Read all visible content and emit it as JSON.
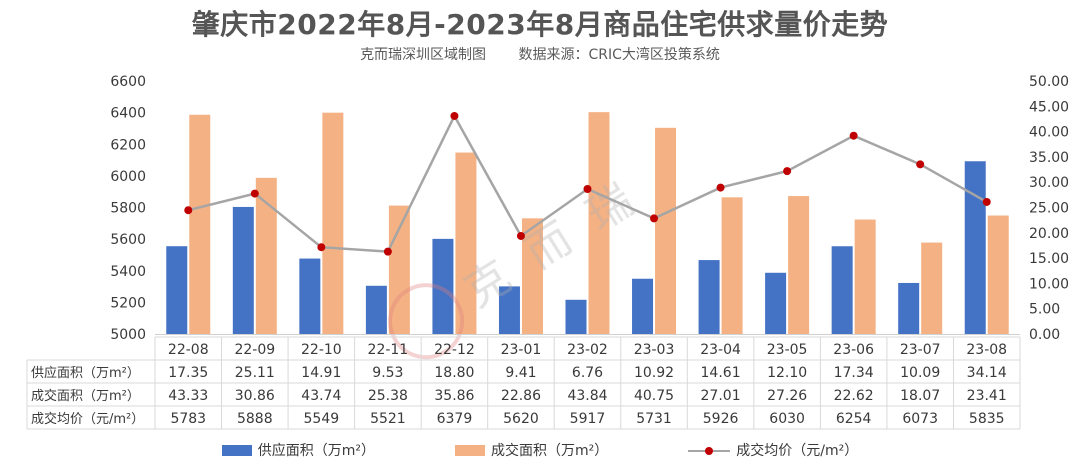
{
  "title": "肇庆市2022年8月-2023年8月商品住宅供求量价走势",
  "subtitle_left": "克而瑞深圳区域制图",
  "subtitle_right": "数据来源：CRIC大湾区投策系统",
  "watermark": "克而瑞",
  "colors": {
    "supply": "#4472c4",
    "deal": "#f4b183",
    "price_line": "#a5a5a5",
    "price_marker": "#c00000"
  },
  "chart_data": {
    "type": "bar",
    "categories": [
      "22-08",
      "22-09",
      "22-10",
      "22-11",
      "22-12",
      "23-01",
      "23-02",
      "23-03",
      "23-04",
      "23-05",
      "23-06",
      "23-07",
      "23-08"
    ],
    "series": [
      {
        "name": "供应面积（万m²）",
        "type": "bar",
        "axis": "right",
        "values": [
          17.35,
          25.11,
          14.91,
          9.53,
          18.8,
          9.41,
          6.76,
          10.92,
          14.61,
          12.1,
          17.34,
          10.09,
          34.14
        ]
      },
      {
        "name": "成交面积（万m²）",
        "type": "bar",
        "axis": "right",
        "values": [
          43.33,
          30.86,
          43.74,
          25.38,
          35.86,
          22.86,
          43.84,
          40.75,
          27.01,
          27.26,
          22.62,
          18.07,
          23.41
        ]
      },
      {
        "name": "成交均价（元/m²）",
        "type": "line",
        "axis": "left",
        "values": [
          5783,
          5888,
          5549,
          5521,
          6379,
          5620,
          5917,
          5731,
          5926,
          6030,
          6254,
          6073,
          5835
        ]
      }
    ],
    "table_labels": [
      "供应面积（万m²）",
      "成交面积（万m²）",
      "成交均价（元/m²）"
    ],
    "table_rows": [
      [
        "17.35",
        "25.11",
        "14.91",
        "9.53",
        "18.80",
        "9.41",
        "6.76",
        "10.92",
        "14.61",
        "12.10",
        "17.34",
        "10.09",
        "34.14"
      ],
      [
        "43.33",
        "30.86",
        "43.74",
        "25.38",
        "35.86",
        "22.86",
        "43.84",
        "40.75",
        "27.01",
        "27.26",
        "22.62",
        "18.07",
        "23.41"
      ],
      [
        "5783",
        "5888",
        "5549",
        "5521",
        "6379",
        "5620",
        "5917",
        "5731",
        "5926",
        "6030",
        "6254",
        "6073",
        "5835"
      ]
    ],
    "y_left": {
      "min": 5000,
      "max": 6600,
      "step": 200,
      "ticks": [
        "5000",
        "5200",
        "5400",
        "5600",
        "5800",
        "6000",
        "6200",
        "6400",
        "6600"
      ]
    },
    "y_right": {
      "min": 0,
      "max": 50,
      "step": 5,
      "ticks": [
        "0.00",
        "5.00",
        "10.00",
        "15.00",
        "20.00",
        "25.00",
        "30.00",
        "35.00",
        "40.00",
        "45.00",
        "50.00"
      ]
    },
    "grid": false,
    "legend_position": "bottom"
  },
  "legend": [
    {
      "label": "供应面积（万m²）",
      "kind": "bar-blue"
    },
    {
      "label": "成交面积（万m²）",
      "kind": "bar-orange"
    },
    {
      "label": "成交均价（元/m²）",
      "kind": "line"
    }
  ]
}
